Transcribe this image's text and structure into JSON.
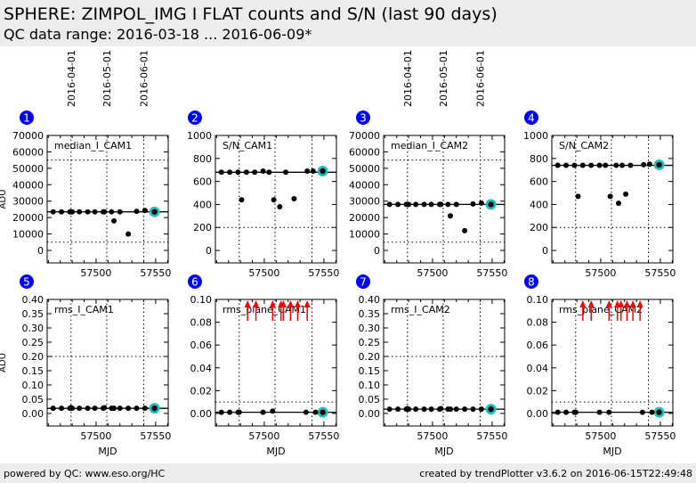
{
  "header": {
    "title": "SPHERE: ZIMPOL_IMG I FLAT counts and S/N (last 90 days)",
    "subtitle": "QC data range: 2016-03-18 ... 2016-06-09*"
  },
  "footer": {
    "left": "powered by QC: www.eso.org/HC",
    "right": "created by trendPlotter v3.6.2 on 2016-06-15T22:49:48"
  },
  "colors": {
    "point": "#000000",
    "latest": "#20c0c0",
    "arrow": "#ff0000",
    "badge": "#0000ff"
  },
  "chart_data": [
    {
      "type": "scatter",
      "panel": "1",
      "label": "median_I_CAM1",
      "ylabel": "ADU",
      "xlabel": "",
      "date_ticks": [
        "2016-04-01",
        "2016-05-01",
        "2016-06-01"
      ],
      "date_mjd": [
        57479,
        57509,
        57540
      ],
      "xlim": [
        57459,
        57560.5
      ],
      "xticks": [
        57500,
        57550
      ],
      "ylim": [
        -7600,
        70000
      ],
      "yticks": [
        0,
        10000,
        20000,
        30000,
        40000,
        50000,
        60000,
        70000
      ],
      "ref": 23500,
      "limits": [
        5000,
        55000
      ],
      "x": [
        57464,
        57471,
        57478,
        57479,
        57480,
        57486,
        57493,
        57499,
        57506,
        57507,
        57513,
        57515,
        57520,
        57527,
        57534,
        57541
      ],
      "y": [
        23500,
        23500,
        23500,
        23500,
        23500,
        23500,
        23500,
        23500,
        23500,
        23500,
        23500,
        18000,
        23500,
        10000,
        23800,
        24300
      ],
      "latest": [
        57549,
        23500
      ],
      "out_of_range": []
    },
    {
      "type": "scatter",
      "panel": "2",
      "label": "S/N_CAM1",
      "ylabel": "",
      "xlabel": "",
      "xlim": [
        57459,
        57560.5
      ],
      "xticks": [
        57500,
        57550
      ],
      "ylim": [
        -108,
        1000
      ],
      "yticks": [
        0,
        200,
        400,
        600,
        800,
        1000
      ],
      "ref": 680,
      "limits": [
        200
      ],
      "x": [
        57464,
        57471,
        57478,
        57481,
        57485,
        57492,
        57499,
        57504,
        57508,
        57513,
        57518,
        57525,
        57536,
        57541
      ],
      "y": [
        680,
        680,
        680,
        440,
        680,
        680,
        690,
        680,
        440,
        380,
        680,
        450,
        690,
        690
      ],
      "latest": [
        57549,
        690
      ],
      "out_of_range": []
    },
    {
      "type": "scatter",
      "panel": "3",
      "label": "median_I_CAM2",
      "ylabel": "",
      "xlabel": "",
      "date_ticks": [
        "2016-04-01",
        "2016-05-01",
        "2016-06-01"
      ],
      "date_mjd": [
        57479,
        57509,
        57540
      ],
      "xlim": [
        57459,
        57560.5
      ],
      "xticks": [
        57500,
        57550
      ],
      "ylim": [
        -7600,
        70000
      ],
      "yticks": [
        0,
        10000,
        20000,
        30000,
        40000,
        50000,
        60000,
        70000
      ],
      "ref": 28000,
      "limits": [
        5000,
        55000
      ],
      "x": [
        57464,
        57471,
        57478,
        57479,
        57480,
        57486,
        57493,
        57499,
        57506,
        57507,
        57513,
        57515,
        57520,
        57527,
        57534,
        57541
      ],
      "y": [
        28000,
        28000,
        28000,
        28000,
        28000,
        28000,
        28000,
        28000,
        28000,
        28000,
        28000,
        21000,
        28000,
        12000,
        28300,
        28800
      ],
      "latest": [
        57549,
        28000
      ],
      "out_of_range": []
    },
    {
      "type": "scatter",
      "panel": "4",
      "label": "S/N_CAM2",
      "ylabel": "",
      "xlabel": "",
      "xlim": [
        57459,
        57560.5
      ],
      "xticks": [
        57500,
        57550
      ],
      "ylim": [
        -108,
        1000
      ],
      "yticks": [
        0,
        200,
        400,
        600,
        800,
        1000
      ],
      "ref": 740,
      "limits": [
        200
      ],
      "x": [
        57464,
        57471,
        57478,
        57481,
        57485,
        57492,
        57499,
        57504,
        57508,
        57513,
        57515,
        57518,
        57521,
        57525,
        57536,
        57541
      ],
      "y": [
        740,
        740,
        740,
        470,
        740,
        740,
        740,
        740,
        470,
        740,
        410,
        740,
        490,
        740,
        745,
        750
      ],
      "latest": [
        57549,
        745
      ],
      "out_of_range": []
    },
    {
      "type": "scatter",
      "panel": "5",
      "label": "rms_I_CAM1",
      "ylabel": "ADU",
      "xlabel": "MJD",
      "xlim": [
        57459,
        57560.5
      ],
      "xticks": [
        57500,
        57550
      ],
      "ylim": [
        -0.044,
        0.4
      ],
      "yticks": [
        0,
        0.05,
        0.1,
        0.15,
        0.2,
        0.25,
        0.3,
        0.35,
        0.4
      ],
      "ytick_labels": [
        "0.00",
        "0.05",
        "0.10",
        "0.15",
        "0.20",
        "0.25",
        "0.30",
        "0.35",
        "0.40"
      ],
      "ref": 0.018,
      "limits": [
        0.2
      ],
      "x": [
        57464,
        57471,
        57478,
        57479,
        57480,
        57486,
        57493,
        57499,
        57506,
        57507,
        57513,
        57515,
        57520,
        57527,
        57534,
        57541
      ],
      "y": [
        0.018,
        0.018,
        0.018,
        0.02,
        0.018,
        0.018,
        0.018,
        0.018,
        0.018,
        0.02,
        0.018,
        0.018,
        0.018,
        0.018,
        0.018,
        0.018
      ],
      "latest": [
        57549,
        0.018
      ],
      "out_of_range": []
    },
    {
      "type": "scatter",
      "panel": "6",
      "label": "rms_plane_CAM1",
      "ylabel": "",
      "xlabel": "MJD",
      "xlim": [
        57459,
        57560.5
      ],
      "xticks": [
        57500,
        57550
      ],
      "ylim": [
        -0.011,
        0.1
      ],
      "yticks": [
        0,
        0.02,
        0.04,
        0.06,
        0.08,
        0.1
      ],
      "ytick_labels": [
        "0.00",
        "0.02",
        "0.04",
        "0.06",
        "0.08",
        "0.10"
      ],
      "ref": 0.001,
      "limits": [
        0.01
      ],
      "x": [
        57464,
        57471,
        57478,
        57479,
        57499,
        57507,
        57535,
        57543
      ],
      "y": [
        0.001,
        0.001,
        0.001,
        0.001,
        0.001,
        0.002,
        0.001,
        0.001
      ],
      "latest": [
        57549,
        0.001
      ],
      "out_of_range": [
        57486,
        57493,
        57507,
        57514,
        57516,
        57522,
        57528,
        57536
      ]
    },
    {
      "type": "scatter",
      "panel": "7",
      "label": "rms_I_CAM2",
      "ylabel": "",
      "xlabel": "MJD",
      "xlim": [
        57459,
        57560.5
      ],
      "xticks": [
        57500,
        57550
      ],
      "ylim": [
        -0.044,
        0.4
      ],
      "yticks": [
        0,
        0.05,
        0.1,
        0.15,
        0.2,
        0.25,
        0.3,
        0.35,
        0.4
      ],
      "ytick_labels": [
        "0.00",
        "0.05",
        "0.10",
        "0.15",
        "0.20",
        "0.25",
        "0.30",
        "0.35",
        "0.40"
      ],
      "ref": 0.015,
      "limits": [
        0.2
      ],
      "x": [
        57464,
        57471,
        57478,
        57479,
        57480,
        57486,
        57493,
        57499,
        57506,
        57507,
        57513,
        57515,
        57520,
        57527,
        57534,
        57541
      ],
      "y": [
        0.015,
        0.015,
        0.015,
        0.017,
        0.015,
        0.015,
        0.015,
        0.015,
        0.015,
        0.017,
        0.015,
        0.015,
        0.015,
        0.015,
        0.015,
        0.015
      ],
      "latest": [
        57549,
        0.015
      ],
      "out_of_range": []
    },
    {
      "type": "scatter",
      "panel": "8",
      "label": "rms_plane_CAM2",
      "ylabel": "",
      "xlabel": "MJD",
      "xlim": [
        57459,
        57560.5
      ],
      "xticks": [
        57500,
        57550
      ],
      "ylim": [
        -0.011,
        0.1
      ],
      "yticks": [
        0,
        0.02,
        0.04,
        0.06,
        0.08,
        0.1
      ],
      "ytick_labels": [
        "0.00",
        "0.02",
        "0.04",
        "0.06",
        "0.08",
        "0.10"
      ],
      "ref": 0.001,
      "limits": [
        0.01
      ],
      "x": [
        57464,
        57471,
        57478,
        57479,
        57499,
        57507,
        57535,
        57543
      ],
      "y": [
        0.001,
        0.001,
        0.001,
        0.001,
        0.001,
        0.001,
        0.001,
        0.001
      ],
      "latest": [
        57549,
        0.001
      ],
      "out_of_range": [
        57485,
        57492,
        57507,
        57514,
        57517,
        57522,
        57527,
        57533
      ]
    }
  ]
}
